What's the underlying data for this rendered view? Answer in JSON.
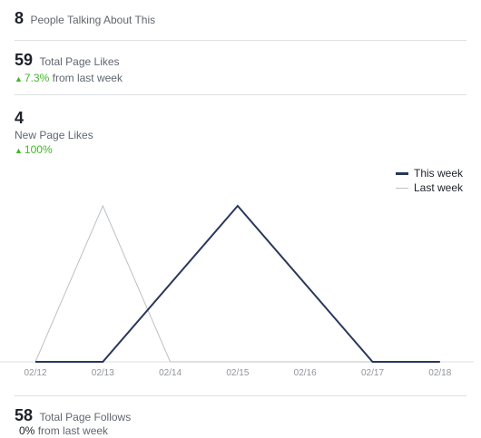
{
  "talking": {
    "value": "8",
    "label": "People Talking About This"
  },
  "total_likes": {
    "value": "59",
    "label": "Total Page Likes",
    "change": "7.3%",
    "change_suffix": "from last week"
  },
  "new_likes": {
    "value": "4",
    "label": "New Page Likes",
    "change": "100%"
  },
  "total_follows": {
    "value": "58",
    "label": "Total Page Follows",
    "change": "0%",
    "change_suffix": "from last week"
  },
  "legend": {
    "this_week": "This week",
    "last_week": "Last week"
  },
  "colors": {
    "this_week": "#29375a",
    "last_week": "#bcc0c4",
    "positive": "#42b72a"
  },
  "chart_data": {
    "type": "line",
    "x": [
      "02/12",
      "02/13",
      "02/14",
      "02/15",
      "02/16",
      "02/17",
      "02/18"
    ],
    "series": [
      {
        "name": "This week",
        "values": [
          0,
          0,
          null,
          1,
          null,
          0,
          0
        ]
      },
      {
        "name": "Last week",
        "values": [
          0,
          1,
          0,
          0,
          0,
          0,
          0
        ]
      }
    ],
    "ylim": [
      0,
      1
    ],
    "grid": false,
    "legend": "top-right"
  }
}
